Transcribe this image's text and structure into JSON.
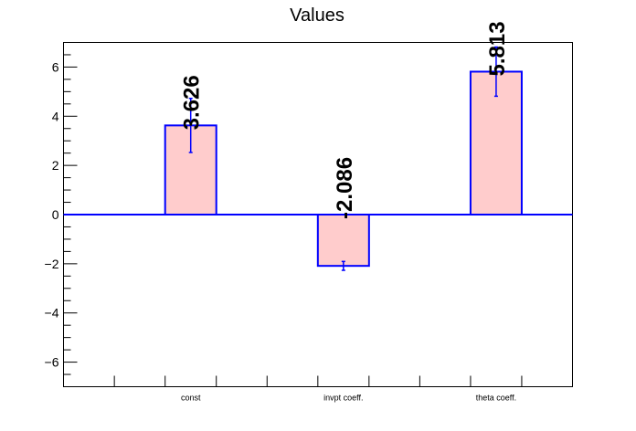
{
  "chart_data": {
    "type": "bar",
    "title": "Values",
    "categories": [
      "const",
      "invpt coeff.",
      "theta coeff."
    ],
    "values": [
      3.626,
      -2.086,
      5.813
    ],
    "errors": [
      1.1,
      0.18,
      1.0
    ],
    "data_labels": [
      "3.626",
      "-2.086",
      "5.813"
    ],
    "ylim": [
      -7,
      7
    ],
    "yticks": [
      -6,
      -4,
      -2,
      0,
      2,
      4,
      6
    ],
    "ytick_labels": [
      "−6",
      "−4",
      "−2",
      "0",
      "2",
      "4",
      "6"
    ],
    "grid": false,
    "colors": {
      "bar_fill": "#ffcccc",
      "bar_edge": "#0000ff",
      "error_bar": "#0000ff",
      "zero_line": "#0000ff",
      "axis": "#000000"
    }
  }
}
